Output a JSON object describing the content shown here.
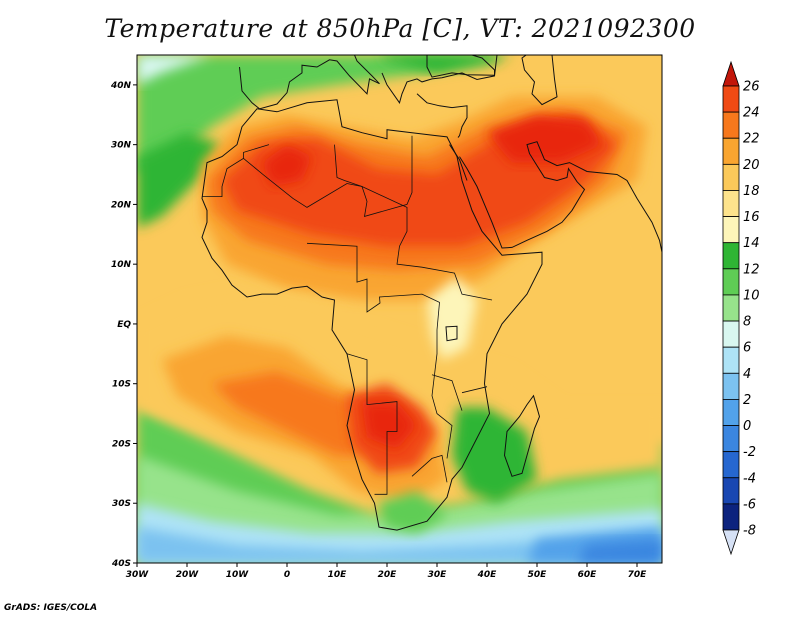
{
  "title": "Temperature at 850hPa [C], VT: 2021092300",
  "credit": "GrADS: IGES/COLA",
  "map": {
    "lon_range": [
      -30,
      75
    ],
    "lat_range": [
      -40,
      45
    ],
    "lat_ticks": [
      {
        "lat": 40,
        "label": "40N"
      },
      {
        "lat": 30,
        "label": "30N"
      },
      {
        "lat": 20,
        "label": "20N"
      },
      {
        "lat": 10,
        "label": "10N"
      },
      {
        "lat": 0,
        "label": "EQ"
      },
      {
        "lat": -10,
        "label": "10S"
      },
      {
        "lat": -20,
        "label": "20S"
      },
      {
        "lat": -30,
        "label": "30S"
      },
      {
        "lat": -40,
        "label": "40S"
      }
    ],
    "lon_ticks": [
      {
        "lon": -30,
        "label": "30W"
      },
      {
        "lon": -20,
        "label": "20W"
      },
      {
        "lon": -10,
        "label": "10W"
      },
      {
        "lon": 0,
        "label": "0"
      },
      {
        "lon": 10,
        "label": "10E"
      },
      {
        "lon": 20,
        "label": "20E"
      },
      {
        "lon": 30,
        "label": "30E"
      },
      {
        "lon": 40,
        "label": "40E"
      },
      {
        "lon": 50,
        "label": "50E"
      },
      {
        "lon": 60,
        "label": "60E"
      },
      {
        "lon": 70,
        "label": "70E"
      }
    ]
  },
  "colorbar": {
    "levels": [
      {
        "label": "26",
        "value": 26,
        "color": "#e8250e"
      },
      {
        "label": "24",
        "value": 24,
        "color": "#f04a14"
      },
      {
        "label": "22",
        "value": 22,
        "color": "#f7781c"
      },
      {
        "label": "20",
        "value": 20,
        "color": "#f9a530"
      },
      {
        "label": "18",
        "value": 18,
        "color": "#fbc95a"
      },
      {
        "label": "16",
        "value": 16,
        "color": "#fde38c"
      },
      {
        "label": "14",
        "value": 14,
        "color": "#fdf5b9"
      },
      {
        "label": "12",
        "value": 12,
        "color": "#2fb534"
      },
      {
        "label": "10",
        "value": 10,
        "color": "#5fcd55"
      },
      {
        "label": "8",
        "value": 8,
        "color": "#97e38b"
      },
      {
        "label": "6",
        "value": 6,
        "color": "#d9f7f0"
      },
      {
        "label": "4",
        "value": 4,
        "color": "#aee3f6"
      },
      {
        "label": "2",
        "value": 2,
        "color": "#7cc2f0"
      },
      {
        "label": "0",
        "value": 0,
        "color": "#52a2ea"
      },
      {
        "label": "-2",
        "value": -2,
        "color": "#3b86e0"
      },
      {
        "label": "-4",
        "value": -4,
        "color": "#2667d0"
      },
      {
        "label": "-6",
        "value": -6,
        "color": "#1947b2"
      },
      {
        "label": "-8",
        "value": -8,
        "color": "#0c237e"
      }
    ],
    "top_color": "#c2160a",
    "bottom_color": "#d6e1f5"
  },
  "colors": {
    "ocean_base": "#fbc95a",
    "coastline": "#111111"
  }
}
